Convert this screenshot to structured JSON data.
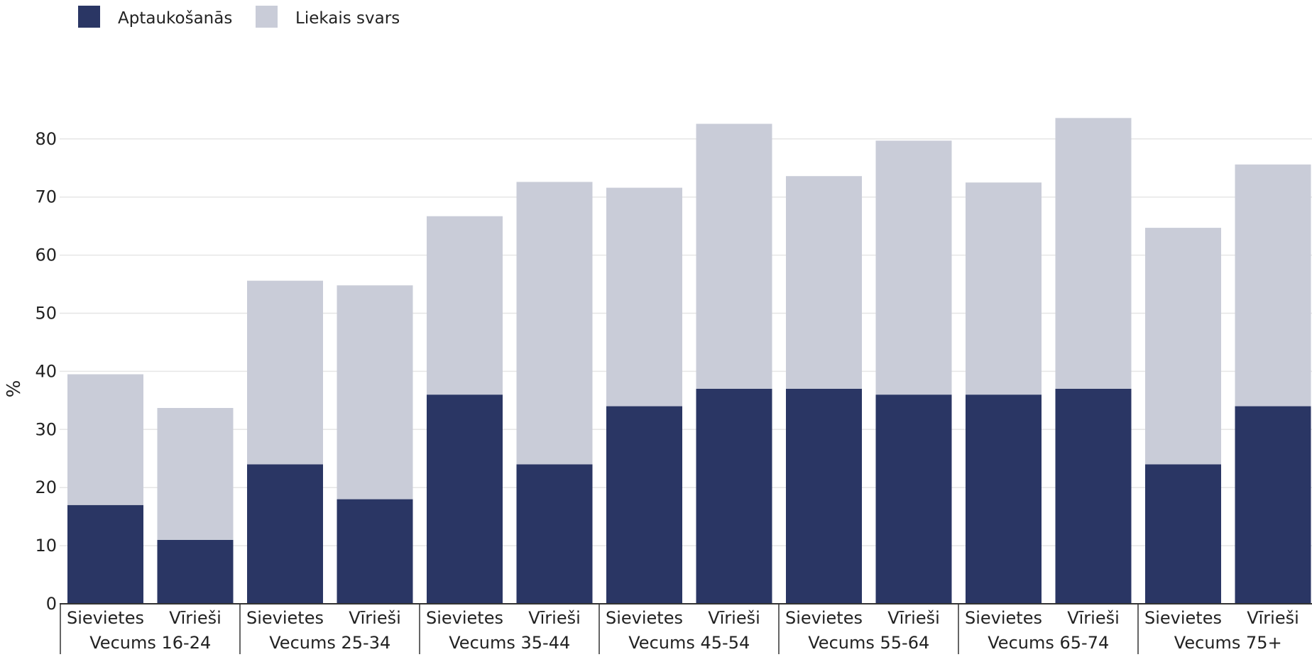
{
  "chart_data": {
    "type": "bar",
    "stacked": true,
    "ylabel": "%",
    "ylim": [
      0,
      90
    ],
    "yticks": [
      0,
      10,
      20,
      30,
      40,
      50,
      60,
      70,
      80
    ],
    "grid": true,
    "legend_position": "top-left",
    "groups": [
      "Vecums 16-24",
      "Vecums 25-34",
      "Vecums 35-44",
      "Vecums 45-54",
      "Vecums 55-64",
      "Vecums 65-74",
      "Vecums 75+"
    ],
    "subcategories": [
      "Sievietes",
      "Vīrieši"
    ],
    "series": [
      {
        "name": "Aptaukošanās",
        "color": "#2a3664",
        "values": [
          17,
          11,
          24,
          18,
          36,
          24,
          34,
          37,
          37,
          36,
          36,
          37,
          24,
          34
        ]
      },
      {
        "name": "Liekais svars",
        "color": "#c9ccd8",
        "values": [
          22.5,
          22.7,
          31.6,
          36.8,
          30.7,
          48.6,
          37.6,
          45.6,
          36.6,
          43.7,
          36.5,
          46.6,
          40.7,
          41.6
        ]
      }
    ]
  }
}
